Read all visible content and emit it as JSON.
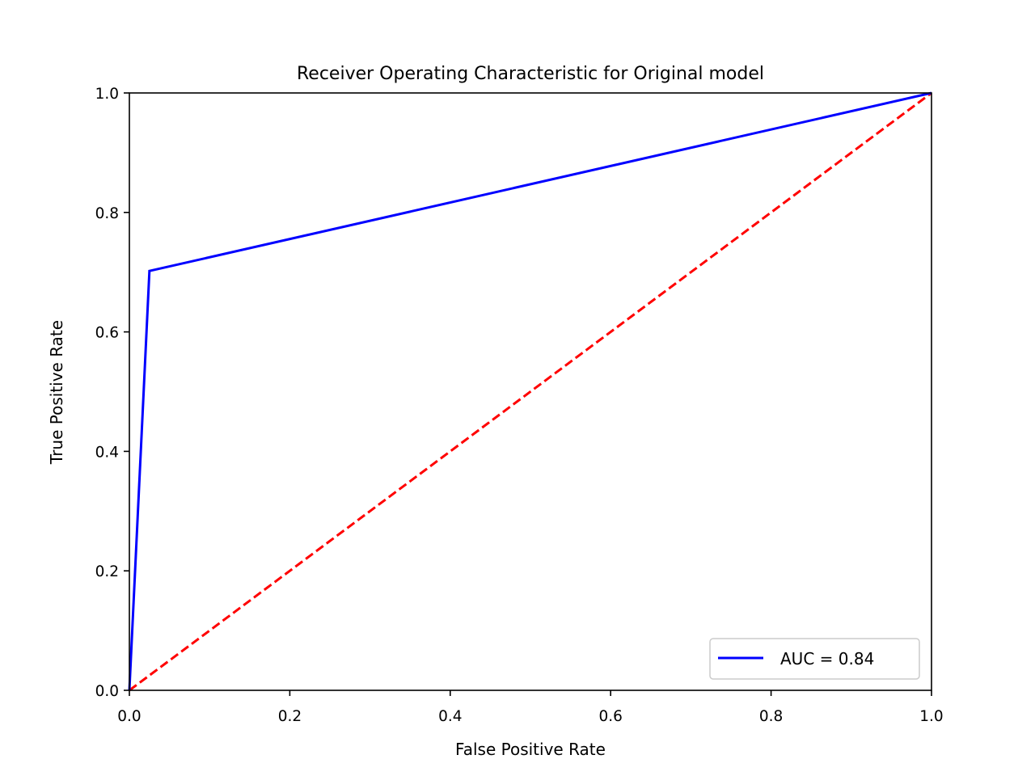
{
  "chart_data": {
    "type": "line",
    "title": "Receiver Operating Characteristic for Original model",
    "xlabel": "False Positive Rate",
    "ylabel": "True Positive Rate",
    "xlim": [
      0.0,
      1.0
    ],
    "ylim": [
      0.0,
      1.0
    ],
    "xticks": [
      "0.0",
      "0.2",
      "0.4",
      "0.6",
      "0.8",
      "1.0"
    ],
    "yticks": [
      "0.0",
      "0.2",
      "0.4",
      "0.6",
      "0.8",
      "1.0"
    ],
    "grid": false,
    "legend_position": "lower-right",
    "series": [
      {
        "name": "AUC = 0.84",
        "color": "#0000ff",
        "style": "solid",
        "x": [
          0.0,
          0.025,
          1.0
        ],
        "y": [
          0.0,
          0.702,
          1.0
        ]
      },
      {
        "color": "#ff0000",
        "style": "dashed",
        "x": [
          0.0,
          1.0
        ],
        "y": [
          0.0,
          1.0
        ]
      }
    ]
  }
}
